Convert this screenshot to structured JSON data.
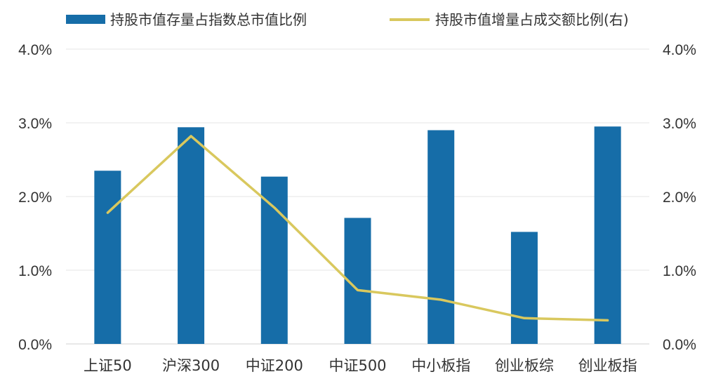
{
  "chart_data": {
    "type": "bar",
    "categories": [
      "上证50",
      "沪深300",
      "中证200",
      "中证500",
      "中小板指",
      "创业板综",
      "创业板指"
    ],
    "series": [
      {
        "name": "持股市值存量占指数总市值比例",
        "type": "bar",
        "axis": "left",
        "color": "#166da8",
        "values": [
          2.35,
          2.94,
          2.27,
          1.71,
          2.9,
          1.52,
          2.95
        ]
      },
      {
        "name": "持股市值增量占成交额比例(右)",
        "type": "line",
        "axis": "right",
        "color": "#d9c85e",
        "values": [
          1.78,
          2.82,
          1.85,
          0.73,
          0.6,
          0.35,
          0.32
        ]
      }
    ],
    "y_left": {
      "min": 0,
      "max": 4,
      "ticks": [
        "0.0%",
        "1.0%",
        "2.0%",
        "3.0%",
        "4.0%"
      ]
    },
    "y_right": {
      "min": 0,
      "max": 4,
      "ticks": [
        "0.0%",
        "1.0%",
        "2.0%",
        "3.0%",
        "4.0%"
      ]
    },
    "grid": true,
    "legend_position": "top"
  }
}
